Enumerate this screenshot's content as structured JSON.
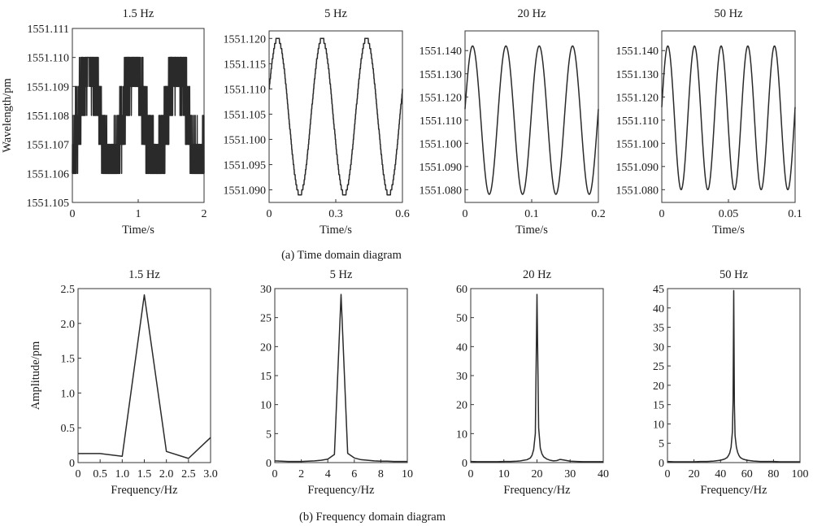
{
  "captions": {
    "time": "(a) Time domain diagram",
    "freq": "(b) Frequency domain diagram"
  },
  "series_color": "#2a2a2a",
  "chart_data": [
    {
      "id": "t1",
      "type": "line",
      "title": "1.5 Hz",
      "xlabel": "Time/s",
      "ylabel": "Wavelength/pm",
      "xlim": [
        0,
        2.0
      ],
      "ylim": [
        1551.105,
        1551.111
      ],
      "xticks": [
        0,
        1,
        2
      ],
      "xtick_labels": [
        "0",
        "1",
        "2"
      ],
      "yticks": [
        1551.105,
        1551.106,
        1551.107,
        1551.108,
        1551.109,
        1551.11,
        1551.111
      ],
      "ytick_labels": [
        "1551.105",
        "1551.106",
        "1551.107",
        "1551.108",
        "1551.109",
        "1551.110",
        "1551.111"
      ],
      "signal": {
        "frequency_hz": 1.5,
        "min": 1551.106,
        "max": 1551.11,
        "quantization": 0.001
      }
    },
    {
      "id": "t2",
      "type": "line",
      "title": "5 Hz",
      "xlabel": "Time/s",
      "ylabel": "",
      "xlim": [
        0,
        0.6
      ],
      "ylim": [
        1551.0875,
        1551.1215
      ],
      "xticks": [
        0,
        0.3,
        0.6
      ],
      "xtick_labels": [
        "0",
        "0.3",
        "0.6"
      ],
      "yticks": [
        1551.09,
        1551.095,
        1551.1,
        1551.105,
        1551.11,
        1551.115,
        1551.12
      ],
      "ytick_labels": [
        "1551.090",
        "1551.095",
        "1551.100",
        "1551.105",
        "1551.110",
        "1551.115",
        "1551.120"
      ],
      "signal": {
        "frequency_hz": 5,
        "min": 1551.089,
        "max": 1551.12,
        "quantization": 0.001
      }
    },
    {
      "id": "t3",
      "type": "line",
      "title": "20 Hz",
      "xlabel": "Time/s",
      "ylabel": "",
      "xlim": [
        0,
        0.2
      ],
      "ylim": [
        1551.0745,
        1551.1485
      ],
      "xticks": [
        0,
        0.1,
        0.2
      ],
      "xtick_labels": [
        "0",
        "0.1",
        "0.2"
      ],
      "yticks": [
        1551.08,
        1551.09,
        1551.1,
        1551.11,
        1551.12,
        1551.13,
        1551.14
      ],
      "ytick_labels": [
        "1551.080",
        "1551.090",
        "1551.100",
        "1551.110",
        "1551.120",
        "1551.130",
        "1551.140"
      ],
      "signal": {
        "frequency_hz": 20,
        "min": 1551.078,
        "max": 1551.142
      }
    },
    {
      "id": "t4",
      "type": "line",
      "title": "50 Hz",
      "xlabel": "Time/s",
      "ylabel": "",
      "xlim": [
        0,
        0.1
      ],
      "ylim": [
        1551.0745,
        1551.1485
      ],
      "xticks": [
        0,
        0.05,
        0.1
      ],
      "xtick_labels": [
        "0",
        "0.05",
        "0.1"
      ],
      "yticks": [
        1551.08,
        1551.09,
        1551.1,
        1551.11,
        1551.12,
        1551.13,
        1551.14
      ],
      "ytick_labels": [
        "1551.080",
        "1551.090",
        "1551.100",
        "1551.110",
        "1551.120",
        "1551.130",
        "1551.140"
      ],
      "signal": {
        "frequency_hz": 50,
        "min": 1551.08,
        "max": 1551.142
      }
    },
    {
      "id": "f1",
      "type": "line",
      "title": "1.5 Hz",
      "xlabel": "Frequency/Hz",
      "ylabel": "Amplitude/pm",
      "xlim": [
        0,
        3.0
      ],
      "ylim": [
        0,
        2.5
      ],
      "xticks": [
        0,
        0.5,
        1.0,
        1.5,
        2.0,
        2.5,
        3.0
      ],
      "xtick_labels": [
        "0",
        "0.5",
        "1.0",
        "1.5",
        "2.0",
        "2.5",
        "3.0"
      ],
      "yticks": [
        0,
        0.5,
        1.0,
        1.5,
        2.0,
        2.5
      ],
      "ytick_labels": [
        "0",
        "0.5",
        "1.0",
        "1.5",
        "2.0",
        "2.5"
      ],
      "x": [
        0,
        0.5,
        1.0,
        1.5,
        2.0,
        2.5,
        3.0
      ],
      "y": [
        0.13,
        0.13,
        0.09,
        2.41,
        0.16,
        0.06,
        0.36
      ]
    },
    {
      "id": "f2",
      "type": "line",
      "title": "5 Hz",
      "xlabel": "Frequency/Hz",
      "ylabel": "",
      "xlim": [
        0,
        10
      ],
      "ylim": [
        0,
        30
      ],
      "xticks": [
        0,
        2,
        4,
        6,
        8,
        10
      ],
      "xtick_labels": [
        "0",
        "2",
        "4",
        "6",
        "8",
        "10"
      ],
      "yticks": [
        0,
        5,
        10,
        15,
        20,
        25,
        30
      ],
      "ytick_labels": [
        "0",
        "5",
        "10",
        "15",
        "20",
        "25",
        "30"
      ],
      "x": [
        0,
        0.5,
        1.0,
        1.5,
        2.0,
        2.5,
        3.0,
        3.5,
        4.0,
        4.5,
        5.0,
        5.5,
        6.0,
        6.5,
        7.0,
        7.5,
        8.0,
        8.5,
        9.0,
        9.5,
        10.0
      ],
      "y": [
        0.3,
        0.25,
        0.2,
        0.2,
        0.2,
        0.25,
        0.3,
        0.4,
        0.6,
        1.4,
        29.0,
        1.6,
        0.8,
        0.5,
        0.4,
        0.3,
        0.25,
        0.25,
        0.2,
        0.2,
        0.2
      ]
    },
    {
      "id": "f3",
      "type": "line",
      "title": "20 Hz",
      "xlabel": "Frequency/Hz",
      "ylabel": "",
      "xlim": [
        0,
        40
      ],
      "ylim": [
        0,
        60
      ],
      "xticks": [
        0,
        10,
        20,
        30,
        40
      ],
      "xtick_labels": [
        "0",
        "10",
        "20",
        "30",
        "40"
      ],
      "yticks": [
        0,
        10,
        20,
        30,
        40,
        50,
        60
      ],
      "ytick_labels": [
        "0",
        "10",
        "20",
        "30",
        "40",
        "50",
        "60"
      ],
      "x": [
        0,
        2,
        4,
        6,
        8,
        10,
        12,
        14,
        15,
        16,
        17,
        18,
        18.5,
        19,
        19.5,
        20,
        20.5,
        21,
        21.5,
        22,
        23,
        24,
        25,
        26,
        27,
        28,
        30,
        32,
        34,
        36,
        38,
        40
      ],
      "y": [
        0.4,
        0.3,
        0.3,
        0.3,
        0.3,
        0.4,
        0.4,
        0.5,
        0.6,
        0.8,
        1.0,
        1.6,
        2.5,
        4.5,
        10,
        58,
        12,
        5,
        3,
        2,
        1.2,
        0.8,
        0.6,
        0.7,
        1.1,
        0.9,
        0.5,
        0.4,
        0.3,
        0.3,
        0.3,
        0.3
      ]
    },
    {
      "id": "f4",
      "type": "line",
      "title": "50 Hz",
      "xlabel": "Frequency/Hz",
      "ylabel": "",
      "xlim": [
        0,
        100
      ],
      "ylim": [
        0,
        45
      ],
      "xticks": [
        0,
        20,
        40,
        60,
        80,
        100
      ],
      "xtick_labels": [
        "0",
        "20",
        "40",
        "60",
        "80",
        "100"
      ],
      "yticks": [
        0,
        5,
        10,
        15,
        20,
        25,
        30,
        35,
        40,
        45
      ],
      "ytick_labels": [
        "0",
        "5",
        "10",
        "15",
        "20",
        "25",
        "30",
        "35",
        "40",
        "45"
      ],
      "x": [
        0,
        5,
        10,
        15,
        20,
        25,
        30,
        35,
        40,
        43,
        45,
        46,
        47,
        48,
        49,
        49.5,
        50,
        50.5,
        51,
        52,
        53,
        54,
        55,
        57,
        60,
        65,
        70,
        75,
        80,
        85,
        90,
        95,
        100
      ],
      "y": [
        0.3,
        0.2,
        0.2,
        0.2,
        0.2,
        0.3,
        0.3,
        0.4,
        0.6,
        0.9,
        1.3,
        1.8,
        2.5,
        4,
        8,
        16,
        44.5,
        15,
        7,
        4,
        2.6,
        1.8,
        1.3,
        0.9,
        0.6,
        0.4,
        0.3,
        0.3,
        0.3,
        0.2,
        0.2,
        0.2,
        0.2
      ]
    }
  ]
}
